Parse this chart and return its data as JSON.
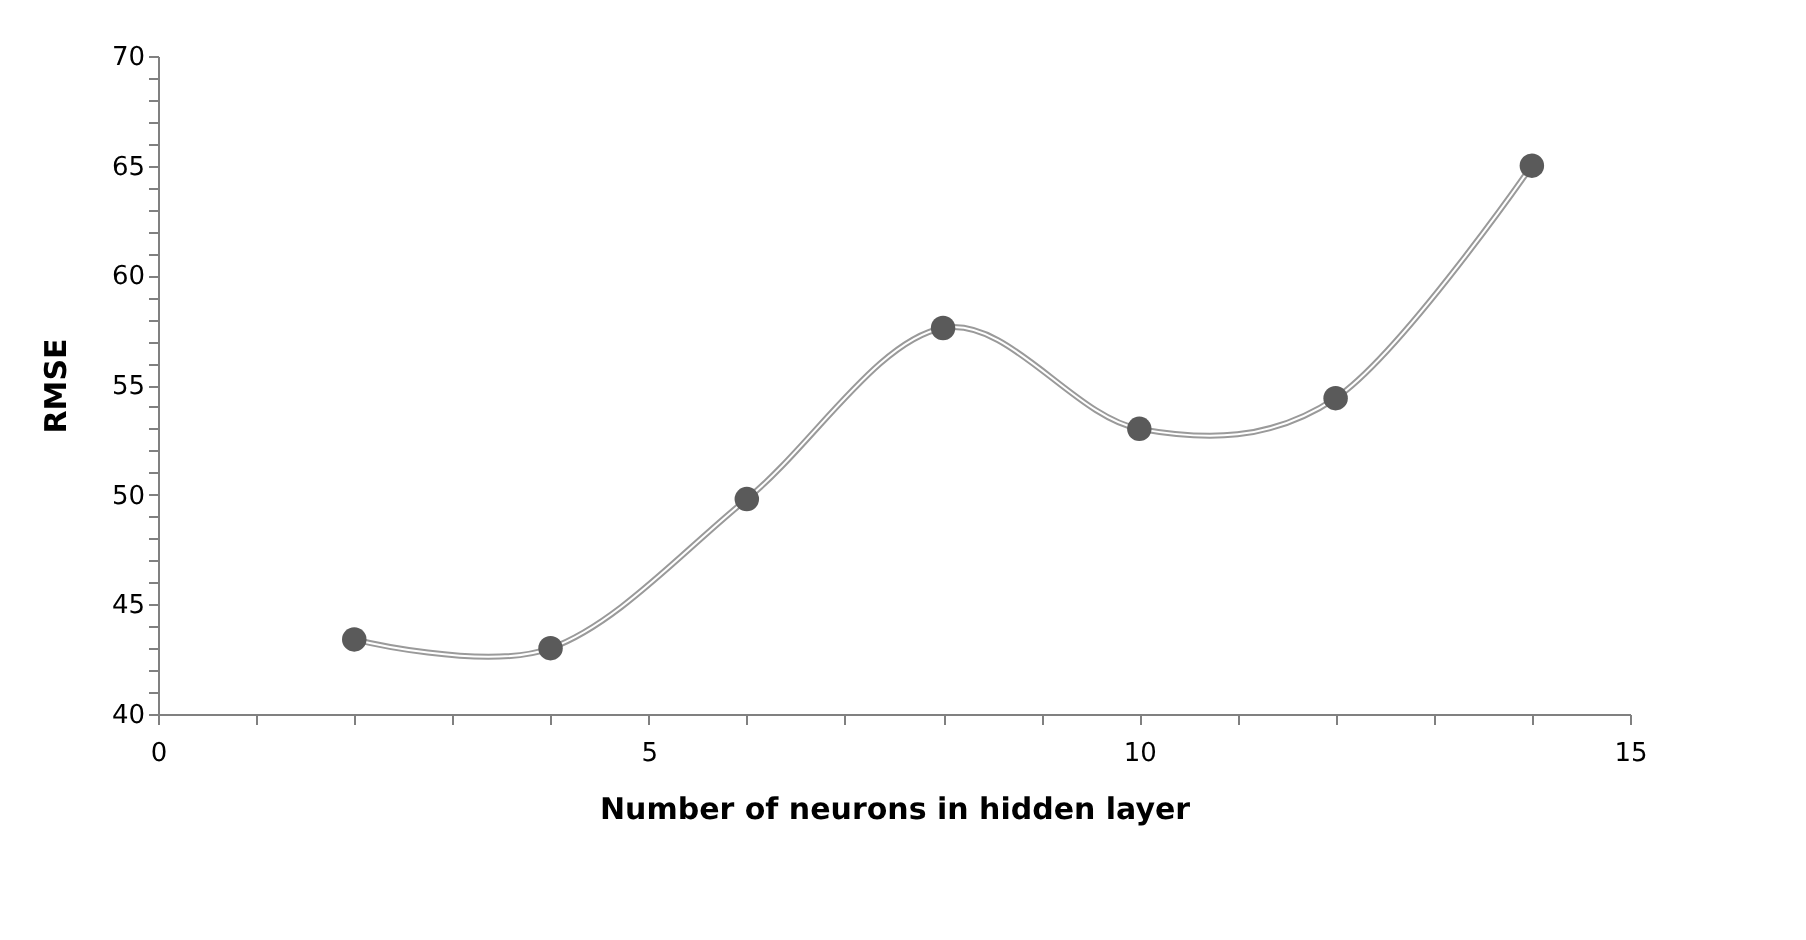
{
  "chart_data": {
    "type": "line",
    "xlabel": "Number of neurons  in hidden layer",
    "ylabel": "RMSE",
    "x": [
      2,
      4,
      6,
      8,
      10,
      12,
      14
    ],
    "series": [
      {
        "color": "#5a5a5a",
        "values": [
          43.4,
          43.0,
          49.8,
          57.6,
          53.0,
          54.4,
          65.0
        ]
      }
    ],
    "xlim": [
      0,
      15
    ],
    "ylim": [
      40,
      70
    ],
    "xticks": [
      0,
      {
        "value": 1,
        "label": null
      },
      {
        "value": 2,
        "label": null
      },
      {
        "value": 3,
        "label": null
      },
      {
        "value": 4,
        "label": null
      },
      5,
      {
        "value": 6,
        "label": null
      },
      {
        "value": 7,
        "label": null
      },
      {
        "value": 8,
        "label": null
      },
      {
        "value": 9,
        "label": null
      },
      10,
      {
        "value": 11,
        "label": null
      },
      {
        "value": 12,
        "label": null
      },
      {
        "value": 13,
        "label": null
      },
      {
        "value": 14,
        "label": null
      },
      15
    ],
    "yticks": [
      40,
      {
        "value": 41,
        "label": null
      },
      {
        "value": 42,
        "label": null
      },
      {
        "value": 43,
        "label": null
      },
      {
        "value": 44,
        "label": null
      },
      45,
      {
        "value": 46,
        "label": null
      },
      {
        "value": 47,
        "label": null
      },
      {
        "value": 48,
        "label": null
      },
      {
        "value": 49,
        "label": null
      },
      50,
      {
        "value": 51,
        "label": null
      },
      {
        "value": 52,
        "label": null
      },
      {
        "value": 53,
        "label": null
      },
      {
        "value": 54,
        "label": null
      },
      55,
      {
        "value": 56,
        "label": null
      },
      {
        "value": 57,
        "label": null
      },
      {
        "value": 58,
        "label": null
      },
      {
        "value": 59,
        "label": null
      },
      60,
      {
        "value": 61,
        "label": null
      },
      {
        "value": 62,
        "label": null
      },
      {
        "value": 63,
        "label": null
      },
      {
        "value": 64,
        "label": null
      },
      65,
      {
        "value": 66,
        "label": null
      },
      {
        "value": 67,
        "label": null
      },
      {
        "value": 68,
        "label": null
      },
      {
        "value": 69,
        "label": null
      },
      70
    ],
    "marker": "circle",
    "line_style": "solid",
    "grid": false
  }
}
